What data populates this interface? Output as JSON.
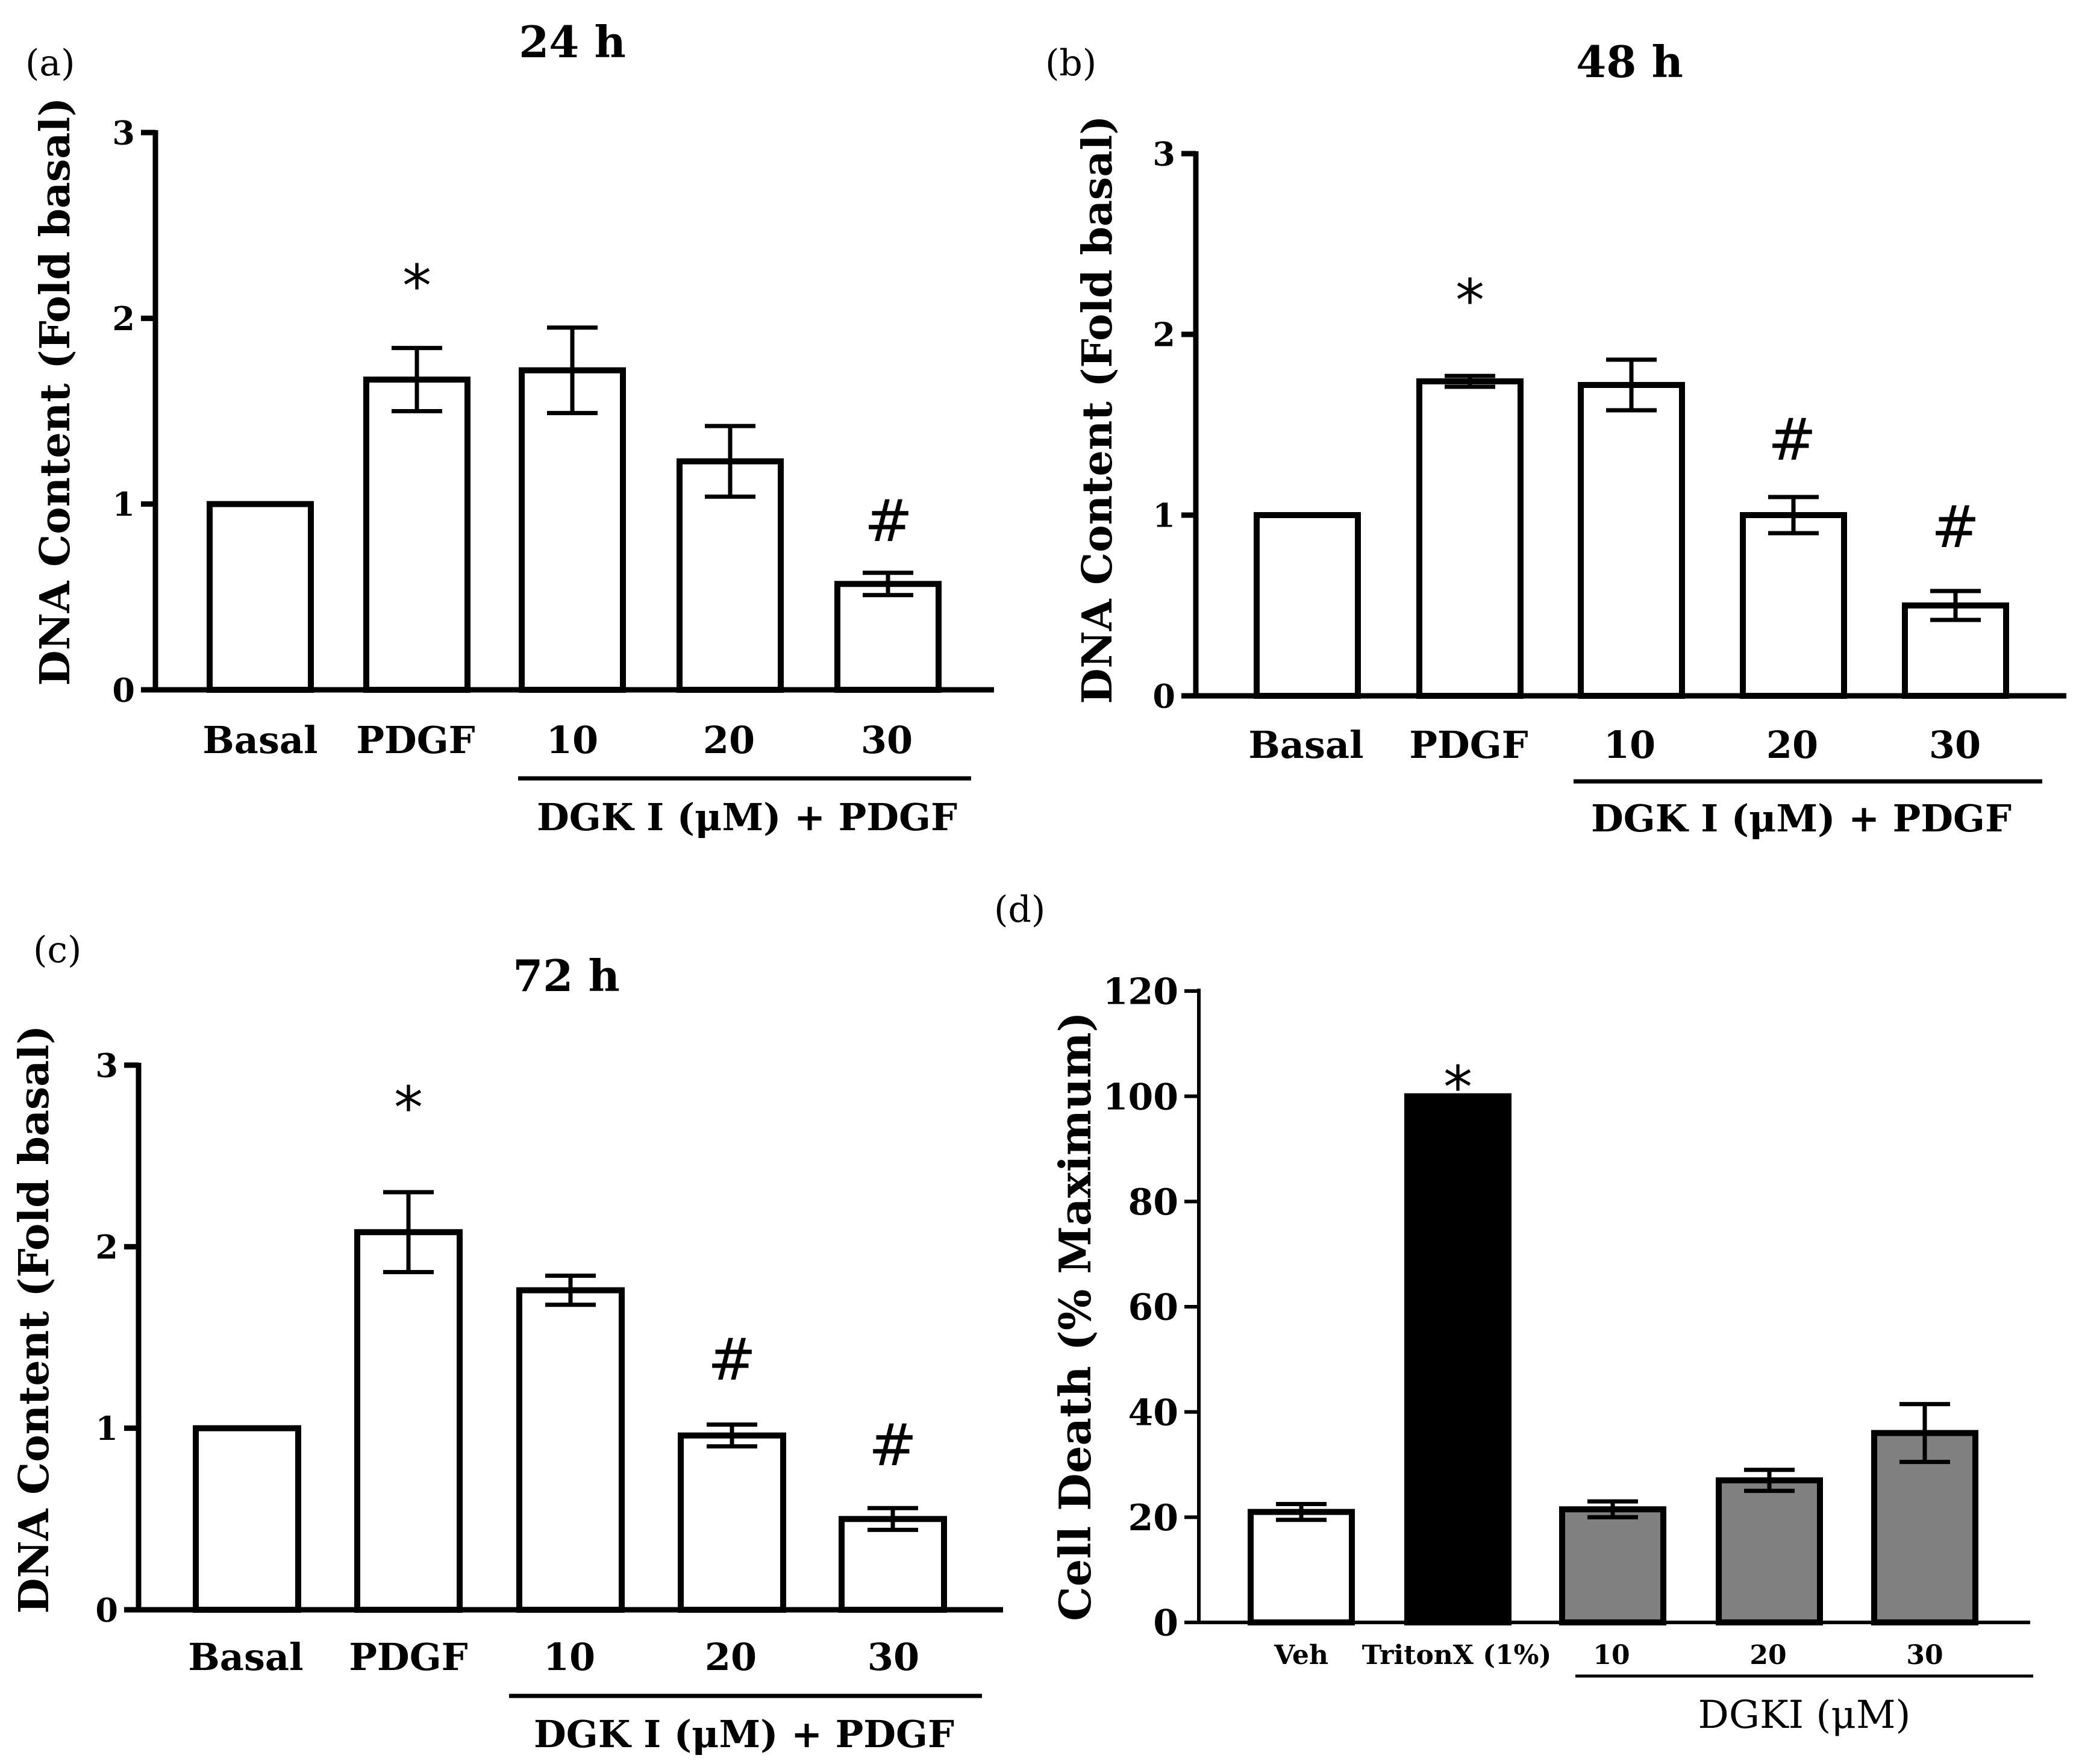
{
  "chart_data": [
    {
      "type": "bar",
      "panel_label": "(a)",
      "title": "24 h",
      "ylabel": "DNA Content (Fold basal)",
      "xlabel": "",
      "ylim": [
        0,
        3
      ],
      "yticks": [
        "0",
        "1",
        "2",
        "3"
      ],
      "categories": [
        "Basal",
        "PDGF",
        "10",
        "20",
        "30"
      ],
      "values": [
        1.0,
        1.67,
        1.72,
        1.23,
        0.57
      ],
      "errors": [
        0,
        0.17,
        0.23,
        0.19,
        0.06
      ],
      "bar_colors": [
        "#ffffff",
        "#ffffff",
        "#ffffff",
        "#ffffff",
        "#ffffff"
      ],
      "annotations": [
        "",
        "*",
        "",
        "",
        "#"
      ],
      "group_label": "DGK I  (μM)  + PDGF"
    },
    {
      "type": "bar",
      "panel_label": "(b)",
      "title": "48 h",
      "ylabel": "DNA Content (Fold basal)",
      "xlabel": "",
      "ylim": [
        0,
        3
      ],
      "yticks": [
        "0",
        "1",
        "2",
        "3"
      ],
      "categories": [
        "Basal",
        "PDGF",
        "10",
        "20",
        "30"
      ],
      "values": [
        1.0,
        1.74,
        1.72,
        1.0,
        0.5
      ],
      "errors": [
        0,
        0.03,
        0.14,
        0.1,
        0.08
      ],
      "bar_colors": [
        "#ffffff",
        "#ffffff",
        "#ffffff",
        "#ffffff",
        "#ffffff"
      ],
      "annotations": [
        "",
        "*",
        "",
        "#",
        "#"
      ],
      "group_label": "DGK I  (μM)  + PDGF"
    },
    {
      "type": "bar",
      "panel_label": "(c)",
      "title": "72 h",
      "ylabel": "DNA Content (Fold basal)",
      "xlabel": "",
      "ylim": [
        0,
        3
      ],
      "yticks": [
        "0",
        "1",
        "2",
        "3"
      ],
      "categories": [
        "Basal",
        "PDGF",
        "10",
        "20",
        "30"
      ],
      "values": [
        1.0,
        2.08,
        1.76,
        0.96,
        0.5
      ],
      "errors": [
        0,
        0.22,
        0.08,
        0.06,
        0.06
      ],
      "bar_colors": [
        "#ffffff",
        "#ffffff",
        "#ffffff",
        "#ffffff",
        "#ffffff"
      ],
      "annotations": [
        "",
        "*",
        "",
        "#",
        "#"
      ],
      "group_label": "DGK I  (μM)  + PDGF"
    },
    {
      "type": "bar",
      "panel_label": "(d)",
      "title": "",
      "ylabel": "Cell Death (% Maximum)",
      "xlabel": "",
      "ylim": [
        0,
        120
      ],
      "yticks": [
        "0",
        "20",
        "40",
        "60",
        "80",
        "100",
        "120"
      ],
      "categories": [
        "Veh",
        "TritonX (1%)",
        "10",
        "20",
        "30"
      ],
      "values": [
        21,
        100,
        21.5,
        27,
        36
      ],
      "errors": [
        1.5,
        0,
        1.5,
        2,
        5.5
      ],
      "bar_colors": [
        "#ffffff",
        "#000000",
        "#808080",
        "#808080",
        "#808080"
      ],
      "annotations": [
        "",
        "*",
        "",
        "",
        ""
      ],
      "group_label": "DGKI (μM)"
    }
  ]
}
